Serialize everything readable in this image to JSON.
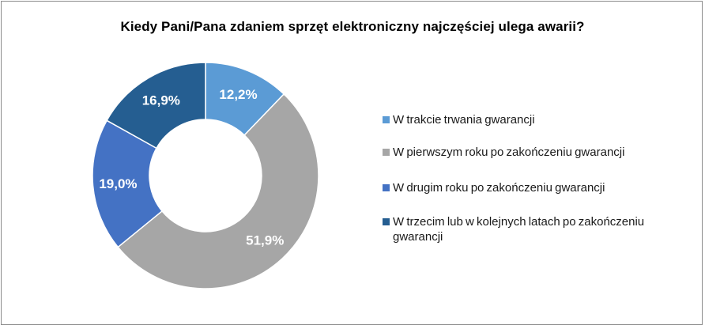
{
  "chart_data": {
    "type": "pie",
    "title": "Kiedy Pani/Pana zdaniem sprzęt elektroniczny najczęściej ulega awarii?",
    "donut": true,
    "legend_position": "right",
    "slices": [
      {
        "label": "W trakcie trwania gwarancji",
        "value": 12.2,
        "value_label": "12,2%",
        "color": "#5b9bd5"
      },
      {
        "label": "W pierwszym roku po zakończeniu gwarancji",
        "value": 51.9,
        "value_label": "51,9%",
        "color": "#a6a6a6"
      },
      {
        "label": "W drugim roku po zakończeniu gwarancji",
        "value": 19.0,
        "value_label": "19,0%",
        "color": "#4472c4"
      },
      {
        "label": "W trzecim lub w kolejnych latach po zakończeniu gwarancji",
        "value": 16.9,
        "value_label": "16,9%",
        "color": "#255e91"
      }
    ]
  }
}
